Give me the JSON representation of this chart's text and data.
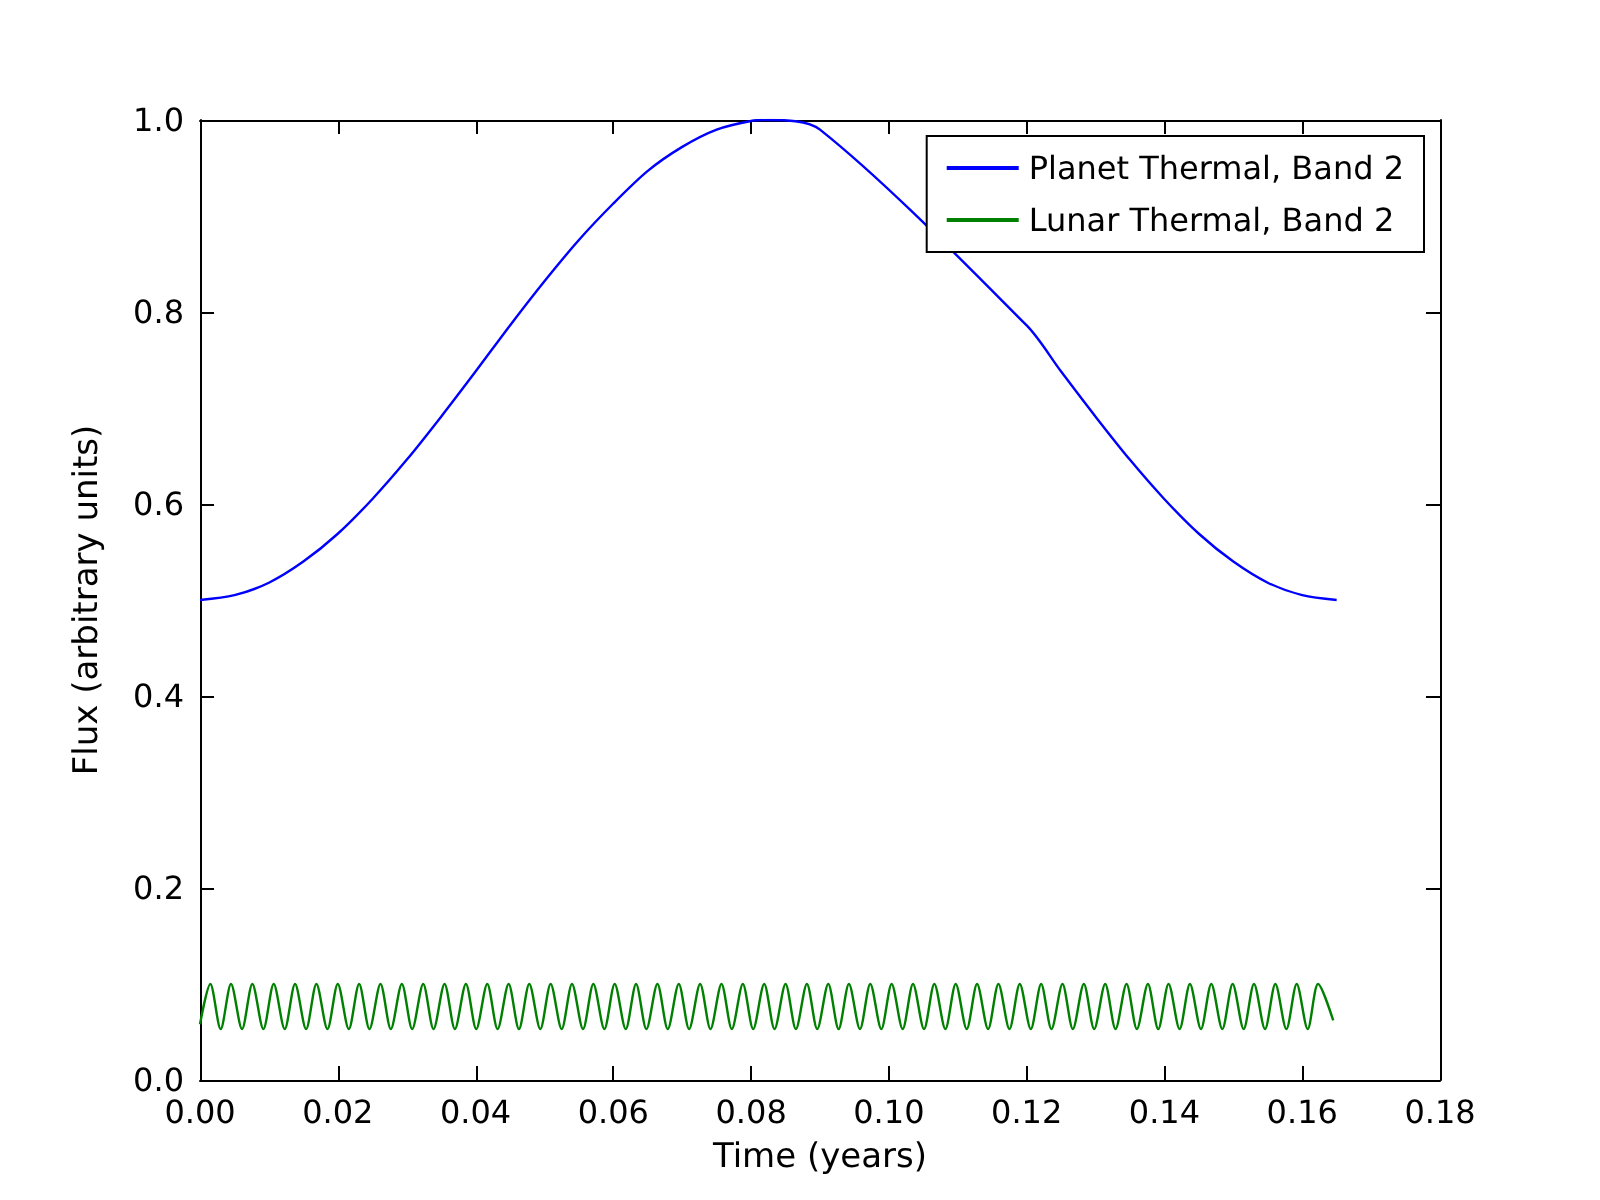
{
  "chart_data": {
    "type": "line",
    "xlabel": "Time (years)",
    "ylabel": "Flux (arbitrary units)",
    "xlim": [
      0,
      0.18
    ],
    "xticks": [
      {
        "value": 0,
        "label": "0.00"
      },
      {
        "value": 0.02,
        "label": "0.02"
      },
      {
        "value": 0.04,
        "label": "0.04"
      },
      {
        "value": 0.06,
        "label": "0.06"
      },
      {
        "value": 0.08,
        "label": "0.08"
      },
      {
        "value": 0.1,
        "label": "0.10"
      },
      {
        "value": 0.12,
        "label": "0.12"
      },
      {
        "value": 0.14,
        "label": "0.14"
      },
      {
        "value": 0.16,
        "label": "0.16"
      },
      {
        "value": 0.18,
        "label": "0.18"
      }
    ],
    "ylim": [
      0,
      1
    ],
    "yticks": [
      {
        "value": 0,
        "label": "0.0"
      },
      {
        "value": 0.2,
        "label": "0.2"
      },
      {
        "value": 0.4,
        "label": "0.4"
      },
      {
        "value": 0.6,
        "label": "0.6"
      },
      {
        "value": 0.8,
        "label": "0.8"
      },
      {
        "value": 1,
        "label": "1.0"
      }
    ],
    "grid": false,
    "legend": "top right",
    "marker": "none",
    "line_style": "solid",
    "series": [
      {
        "name": "Planet Thermal, Band 2",
        "color": "#0000ff",
        "x": [
          0,
          0.005,
          0.01,
          0.015,
          0.02,
          0.025,
          0.03,
          0.035,
          0.04,
          0.045,
          0.05,
          0.055,
          0.06,
          0.065,
          0.07,
          0.075,
          0.08,
          0.0825,
          0.09,
          0.12,
          0.125,
          0.13,
          0.135,
          0.14,
          0.145,
          0.15,
          0.155,
          0.16,
          0.165
        ],
        "values": [
          0.5,
          0.505,
          0.518,
          0.54,
          0.569,
          0.605,
          0.646,
          0.691,
          0.738,
          0.786,
          0.832,
          0.875,
          0.913,
          0.947,
          0.972,
          0.99,
          0.999,
          1.0,
          0.99,
          0.786,
          0.738,
          0.691,
          0.646,
          0.605,
          0.569,
          0.54,
          0.518,
          0.505,
          0.5
        ]
      },
      {
        "name": "Lunar Thermal, Band 2",
        "color": "#008000",
        "x": [
          0,
          0.0015,
          0.003,
          0.0045,
          0.0061,
          0.0076,
          0.0092,
          0.0107,
          0.0123,
          0.0138,
          0.0154,
          0.0169,
          0.0185,
          0.02,
          0.0216,
          0.0231,
          0.0246,
          0.0262,
          0.0277,
          0.0293,
          0.0308,
          0.0324,
          0.0339,
          0.0355,
          0.037,
          0.0386,
          0.0401,
          0.0417,
          0.0432,
          0.0448,
          0.0463,
          0.0478,
          0.0494,
          0.0509,
          0.0525,
          0.054,
          0.0556,
          0.0571,
          0.0587,
          0.0602,
          0.0618,
          0.0633,
          0.0648,
          0.0664,
          0.0679,
          0.0695,
          0.071,
          0.0726,
          0.0741,
          0.0757,
          0.0772,
          0.0788,
          0.0803,
          0.0819,
          0.0834,
          0.085,
          0.0865,
          0.0881,
          0.0896,
          0.0912,
          0.0927,
          0.0942,
          0.0958,
          0.0973,
          0.0989,
          0.1004,
          0.102,
          0.1035,
          0.1051,
          0.1066,
          0.1082,
          0.1097,
          0.1113,
          0.1128,
          0.1144,
          0.1159,
          0.1175,
          0.119,
          0.1206,
          0.1221,
          0.1236,
          0.1252,
          0.1267,
          0.1283,
          0.1298,
          0.1314,
          0.1329,
          0.1345,
          0.136,
          0.1376,
          0.1391,
          0.1406,
          0.1422,
          0.1437,
          0.1453,
          0.1468,
          0.1484,
          0.1499,
          0.1515,
          0.153,
          0.1546,
          0.1561,
          0.1577,
          0.1592,
          0.1608,
          0.1623,
          0.1645
        ],
        "values": [
          0.058,
          0.1,
          0.053,
          0.1,
          0.053,
          0.1,
          0.053,
          0.1,
          0.053,
          0.1,
          0.053,
          0.1,
          0.053,
          0.1,
          0.053,
          0.1,
          0.053,
          0.1,
          0.053,
          0.1,
          0.053,
          0.1,
          0.053,
          0.1,
          0.053,
          0.1,
          0.053,
          0.1,
          0.053,
          0.1,
          0.053,
          0.1,
          0.053,
          0.1,
          0.053,
          0.1,
          0.053,
          0.1,
          0.053,
          0.1,
          0.053,
          0.1,
          0.053,
          0.1,
          0.053,
          0.1,
          0.053,
          0.1,
          0.053,
          0.1,
          0.053,
          0.1,
          0.053,
          0.1,
          0.053,
          0.1,
          0.053,
          0.1,
          0.053,
          0.1,
          0.053,
          0.1,
          0.053,
          0.1,
          0.053,
          0.1,
          0.053,
          0.1,
          0.053,
          0.1,
          0.053,
          0.1,
          0.053,
          0.1,
          0.053,
          0.1,
          0.053,
          0.1,
          0.053,
          0.1,
          0.053,
          0.1,
          0.053,
          0.1,
          0.053,
          0.1,
          0.053,
          0.1,
          0.053,
          0.1,
          0.053,
          0.1,
          0.053,
          0.1,
          0.053,
          0.1,
          0.053,
          0.1,
          0.053,
          0.1,
          0.053,
          0.1,
          0.053,
          0.1,
          0.053,
          0.1,
          0.062
        ]
      }
    ]
  }
}
